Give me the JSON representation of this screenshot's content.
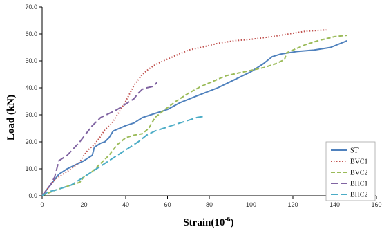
{
  "chart_data": {
    "type": "line",
    "xlabel": "Strain(10",
    "xlabel_sup": "-6",
    "xlabel_end": ")",
    "ylabel": "Load (kN)",
    "xlim": [
      0,
      160
    ],
    "ylim": [
      0,
      70
    ],
    "x_ticks": [
      "0",
      "20",
      "40",
      "60",
      "80",
      "100",
      "120",
      "140",
      "160"
    ],
    "y_ticks": [
      "0.0",
      "10.0",
      "20.0",
      "30.0",
      "40.0",
      "50.0",
      "60.0",
      "70.0"
    ],
    "grid": false,
    "legend_position": "bottom-right",
    "series": [
      {
        "name": "ST",
        "color": "#4f81bd",
        "dash": "solid",
        "points": [
          [
            0,
            0
          ],
          [
            2,
            2
          ],
          [
            4,
            4
          ],
          [
            6,
            6
          ],
          [
            8,
            8
          ],
          [
            12,
            10
          ],
          [
            16,
            11.5
          ],
          [
            20,
            13
          ],
          [
            23,
            14.5
          ],
          [
            24,
            15
          ],
          [
            25,
            18
          ],
          [
            28,
            19.5
          ],
          [
            30,
            20
          ],
          [
            32,
            21.5
          ],
          [
            34,
            24
          ],
          [
            37,
            25
          ],
          [
            40,
            26
          ],
          [
            44,
            27
          ],
          [
            46,
            28
          ],
          [
            48,
            29
          ],
          [
            52,
            30
          ],
          [
            56,
            31
          ],
          [
            60,
            32
          ],
          [
            66,
            34.5
          ],
          [
            74,
            37
          ],
          [
            84,
            40
          ],
          [
            92,
            43
          ],
          [
            100,
            46
          ],
          [
            106,
            49
          ],
          [
            110,
            51.5
          ],
          [
            114,
            52.5
          ],
          [
            118,
            53
          ],
          [
            122,
            53.5
          ],
          [
            130,
            54
          ],
          [
            138,
            55
          ],
          [
            146,
            57.5
          ]
        ]
      },
      {
        "name": "BVC1",
        "color": "#c0504d",
        "dash": "dot",
        "points": [
          [
            0,
            0
          ],
          [
            2,
            2
          ],
          [
            4,
            4
          ],
          [
            6,
            6
          ],
          [
            10,
            8
          ],
          [
            14,
            10
          ],
          [
            18,
            12.5
          ],
          [
            20,
            15
          ],
          [
            22,
            17
          ],
          [
            25,
            19
          ],
          [
            28,
            22
          ],
          [
            30,
            24.5
          ],
          [
            33,
            26.5
          ],
          [
            36,
            30
          ],
          [
            40,
            35
          ],
          [
            44,
            41
          ],
          [
            48,
            45
          ],
          [
            51,
            47
          ],
          [
            54,
            48.5
          ],
          [
            58,
            50
          ],
          [
            64,
            52
          ],
          [
            70,
            54
          ],
          [
            76,
            55
          ],
          [
            84,
            56.5
          ],
          [
            92,
            57.5
          ],
          [
            100,
            58
          ],
          [
            110,
            59
          ],
          [
            118,
            60
          ],
          [
            126,
            61
          ],
          [
            136,
            61.5
          ]
        ]
      },
      {
        "name": "BVC2",
        "color": "#9bbb59",
        "dash": "dash",
        "points": [
          [
            0,
            0
          ],
          [
            3,
            1
          ],
          [
            6,
            2
          ],
          [
            10,
            3
          ],
          [
            14,
            4
          ],
          [
            18,
            5
          ],
          [
            20,
            7
          ],
          [
            24,
            9
          ],
          [
            28,
            12
          ],
          [
            32,
            15
          ],
          [
            36,
            19
          ],
          [
            40,
            21.5
          ],
          [
            44,
            22.5
          ],
          [
            48,
            23
          ],
          [
            51,
            25
          ],
          [
            54,
            29
          ],
          [
            58,
            31.5
          ],
          [
            64,
            35
          ],
          [
            70,
            38
          ],
          [
            76,
            40.5
          ],
          [
            82,
            42.5
          ],
          [
            88,
            44.5
          ],
          [
            94,
            45.5
          ],
          [
            100,
            46.5
          ],
          [
            106,
            47.5
          ],
          [
            112,
            49
          ],
          [
            116,
            50.5
          ],
          [
            117,
            53
          ],
          [
            120,
            54
          ],
          [
            126,
            56
          ],
          [
            132,
            57.5
          ],
          [
            140,
            59
          ],
          [
            146,
            59.5
          ]
        ]
      },
      {
        "name": "BHC1",
        "color": "#8064a2",
        "dash": "longdash",
        "points": [
          [
            0,
            0
          ],
          [
            2,
            2
          ],
          [
            4,
            4
          ],
          [
            6,
            7
          ],
          [
            8,
            13
          ],
          [
            10,
            14
          ],
          [
            12,
            15
          ],
          [
            15,
            17.5
          ],
          [
            18,
            20
          ],
          [
            20,
            22
          ],
          [
            22,
            24
          ],
          [
            24,
            26
          ],
          [
            26,
            27.5
          ],
          [
            28,
            29
          ],
          [
            32,
            30.5
          ],
          [
            36,
            32
          ],
          [
            40,
            34
          ],
          [
            44,
            36
          ],
          [
            46,
            38
          ],
          [
            48,
            39.5
          ],
          [
            50,
            40
          ],
          [
            53,
            40.5
          ],
          [
            55,
            42
          ]
        ]
      },
      {
        "name": "BHC2",
        "color": "#4bacc6",
        "dash": "longdash",
        "points": [
          [
            0,
            0
          ],
          [
            3,
            1.5
          ],
          [
            6,
            2
          ],
          [
            10,
            3
          ],
          [
            14,
            4
          ],
          [
            18,
            6
          ],
          [
            22,
            8
          ],
          [
            26,
            10
          ],
          [
            30,
            12
          ],
          [
            34,
            14
          ],
          [
            38,
            16
          ],
          [
            42,
            18
          ],
          [
            46,
            20
          ],
          [
            50,
            22.5
          ],
          [
            54,
            24
          ],
          [
            58,
            25
          ],
          [
            62,
            26
          ],
          [
            66,
            27
          ],
          [
            70,
            28
          ],
          [
            74,
            29
          ],
          [
            78,
            29.5
          ]
        ]
      }
    ]
  }
}
